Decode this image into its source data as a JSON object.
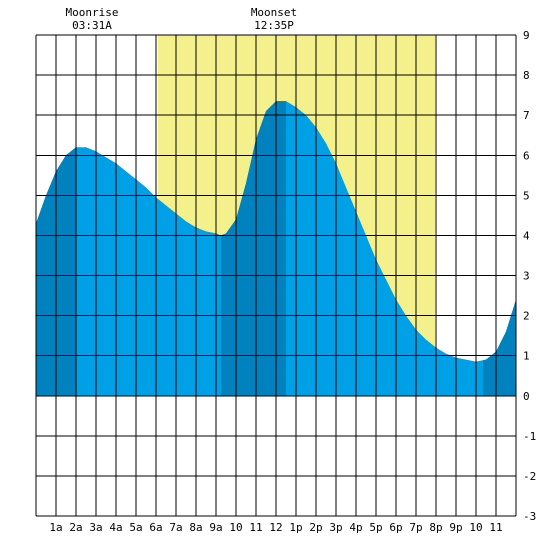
{
  "chart_data": {
    "type": "area",
    "x_tick_labels": [
      "1a",
      "2a",
      "3a",
      "4a",
      "5a",
      "6a",
      "7a",
      "8a",
      "9a",
      "10",
      "11",
      "12",
      "1p",
      "2p",
      "3p",
      "4p",
      "5p",
      "6p",
      "7p",
      "8p",
      "9p",
      "10",
      "11"
    ],
    "y_tick_labels": [
      "9",
      "8",
      "7",
      "6",
      "5",
      "4",
      "3",
      "2",
      "1",
      "0",
      "-1",
      "-2",
      "-3"
    ],
    "xlim": [
      0,
      24
    ],
    "ylim": [
      -3,
      9
    ],
    "grid": true,
    "daylight": {
      "start_hour": 6.1,
      "end_hour": 19.95,
      "color": "#f4f08c"
    },
    "annotations": [
      {
        "title": "Moonrise",
        "time": "03:31A",
        "hour": 3.5
      },
      {
        "title": "Moonset",
        "time": "12:35P",
        "hour": 12.6
      }
    ],
    "colors": {
      "tide": "#00a0e6",
      "tide_dark": "#0082be",
      "grid": "#000000",
      "daylight": "#f4f08c"
    },
    "series": [
      {
        "x": [
          0,
          0.5,
          1,
          1.5,
          2,
          2.5,
          3,
          3.5,
          4,
          4.5,
          5,
          5.5,
          6,
          6.5,
          7,
          7.5,
          8,
          8.5,
          9,
          9.25,
          9.5,
          10,
          10.5,
          11,
          11.5,
          12,
          12.5,
          13,
          13.5,
          14,
          14.5,
          15,
          15.5,
          16,
          16.5,
          17,
          17.5,
          18,
          18.5,
          19,
          19.5,
          20,
          20.5,
          21,
          21.5,
          22,
          22.5,
          23,
          23.5,
          24
        ],
        "y": [
          4.3,
          5.0,
          5.6,
          6.0,
          6.2,
          6.2,
          6.1,
          5.95,
          5.8,
          5.6,
          5.4,
          5.2,
          4.95,
          4.75,
          4.55,
          4.35,
          4.2,
          4.1,
          4.05,
          4.0,
          4.05,
          4.4,
          5.3,
          6.4,
          7.1,
          7.35,
          7.35,
          7.2,
          7.0,
          6.7,
          6.3,
          5.8,
          5.2,
          4.6,
          4.0,
          3.4,
          2.9,
          2.4,
          2.0,
          1.65,
          1.4,
          1.2,
          1.05,
          0.95,
          0.9,
          0.85,
          0.9,
          1.1,
          1.6,
          2.4
        ]
      }
    ],
    "dark_bands": [
      {
        "start_hour": 0,
        "end_hour": 2.0
      },
      {
        "start_hour": 9.25,
        "end_hour": 12.5
      },
      {
        "start_hour": 22.35,
        "end_hour": 24
      }
    ]
  }
}
